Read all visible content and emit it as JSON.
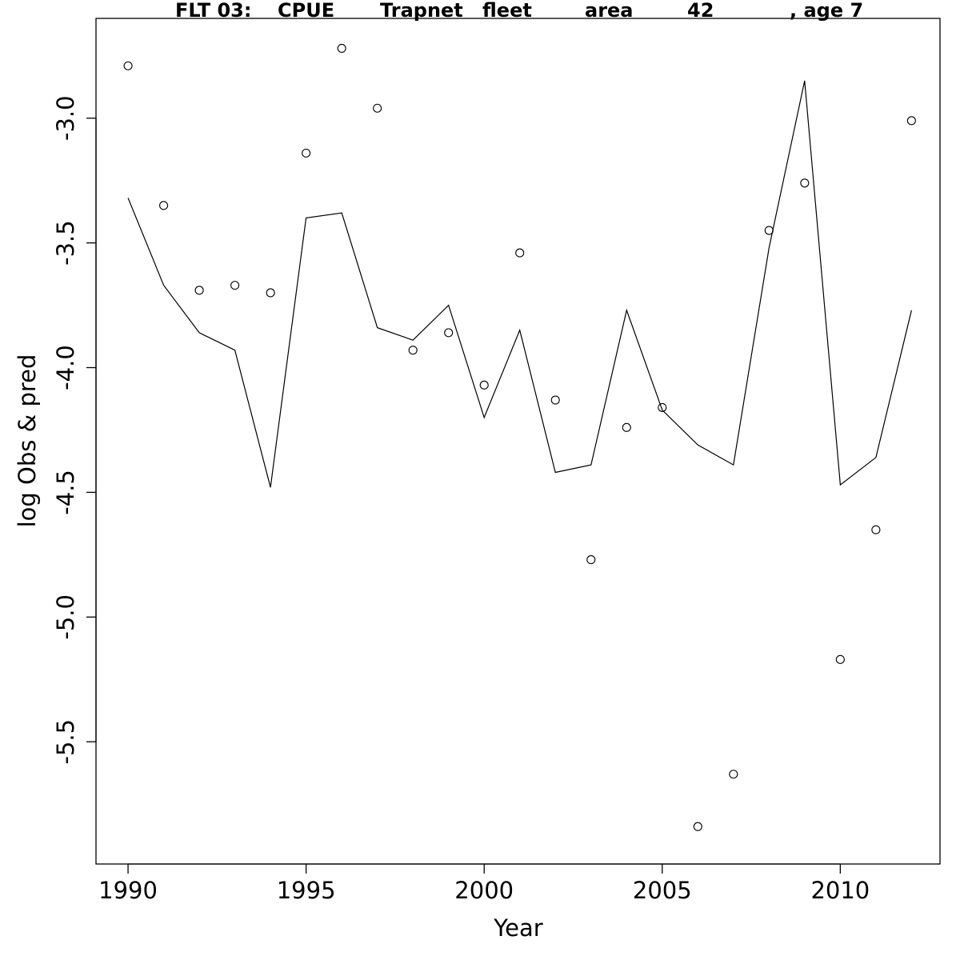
{
  "chart_data": {
    "type": "line",
    "title_parts": [
      "FLT 03:",
      "CPUE",
      "Trapnet",
      "fleet",
      "area",
      "42",
      ", age 7"
    ],
    "xlabel": "Year",
    "ylabel": "log Obs & pred",
    "xlim": [
      1989.1,
      2012.8
    ],
    "ylim": [
      -5.99,
      -2.6
    ],
    "x_ticks": [
      1990,
      1995,
      2000,
      2005,
      2010
    ],
    "x_tick_labels": [
      "1990",
      "1995",
      "2000",
      "2005",
      "2010"
    ],
    "y_ticks": [
      -5.5,
      -5.0,
      -4.5,
      -4.0,
      -3.5,
      -3.0
    ],
    "y_tick_labels": [
      "-5.5",
      "-5.0",
      "-4.5",
      "-4.0",
      "-3.5",
      "-3.0"
    ],
    "x": [
      1990,
      1991,
      1992,
      1993,
      1994,
      1995,
      1996,
      1997,
      1998,
      1999,
      2000,
      2001,
      2002,
      2003,
      2004,
      2005,
      2006,
      2007,
      2008,
      2009,
      2010,
      2011,
      2012
    ],
    "series": [
      {
        "style": "points",
        "values": [
          -2.79,
          -3.35,
          -3.69,
          -3.67,
          -3.7,
          -3.14,
          -2.72,
          -2.96,
          -3.93,
          -3.86,
          -4.07,
          -3.54,
          -4.13,
          -4.77,
          -4.24,
          -4.16,
          -5.84,
          -5.63,
          -3.45,
          -3.26,
          -5.17,
          -4.65,
          -3.01
        ]
      },
      {
        "style": "line",
        "values": [
          -3.32,
          -3.67,
          -3.86,
          -3.93,
          -4.48,
          -3.4,
          -3.38,
          -3.84,
          -3.89,
          -3.75,
          -4.2,
          -3.85,
          -4.42,
          -4.39,
          -3.77,
          -4.17,
          -4.31,
          -4.39,
          -3.52,
          -2.85,
          -4.47,
          -4.36,
          -3.77
        ]
      }
    ]
  }
}
